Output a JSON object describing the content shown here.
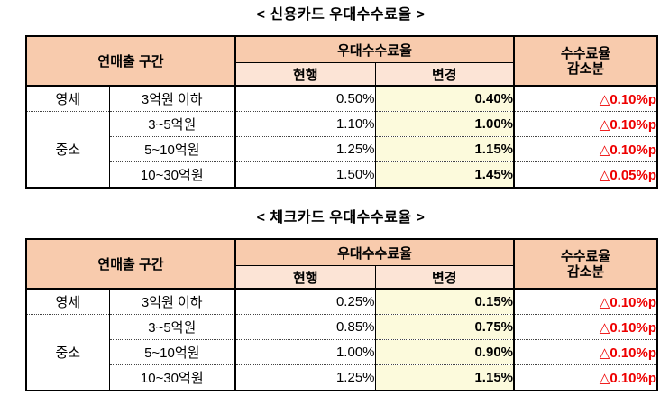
{
  "colors": {
    "header_bg": "#F8CBAD",
    "subheader_bg": "#FCE4D6",
    "changed_col_bg": "#FCFADC",
    "reduction_text": "#EE0000"
  },
  "tables": [
    {
      "title": "< 신용카드 우대수수료율 >",
      "headers": {
        "sales_range": "연매출 구간",
        "preferential_rate": "우대수수료율",
        "current": "현행",
        "changed": "변경",
        "reduction_line1": "수수료율",
        "reduction_line2": "감소분"
      },
      "rows": [
        {
          "group": "영세",
          "group_rowspan": 1,
          "range": "3억원 이하",
          "current": "0.50%",
          "changed": "0.40%",
          "reduction": "△0.10%p"
        },
        {
          "group": "중소",
          "group_rowspan": 3,
          "range": "3~5억원",
          "current": "1.10%",
          "changed": "1.00%",
          "reduction": "△0.10%p"
        },
        {
          "range": "5~10억원",
          "current": "1.25%",
          "changed": "1.15%",
          "reduction": "△0.10%p"
        },
        {
          "range": "10~30억원",
          "current": "1.50%",
          "changed": "1.45%",
          "reduction": "△0.05%p"
        }
      ]
    },
    {
      "title": "< 체크카드 우대수수료율 >",
      "headers": {
        "sales_range": "연매출 구간",
        "preferential_rate": "우대수수료율",
        "current": "현행",
        "changed": "변경",
        "reduction_line1": "수수료율",
        "reduction_line2": "감소분"
      },
      "rows": [
        {
          "group": "영세",
          "group_rowspan": 1,
          "range": "3억원 이하",
          "current": "0.25%",
          "changed": "0.15%",
          "reduction": "△0.10%p"
        },
        {
          "group": "중소",
          "group_rowspan": 3,
          "range": "3~5억원",
          "current": "0.85%",
          "changed": "0.75%",
          "reduction": "△0.10%p"
        },
        {
          "range": "5~10억원",
          "current": "1.00%",
          "changed": "0.90%",
          "reduction": "△0.10%p"
        },
        {
          "range": "10~30억원",
          "current": "1.25%",
          "changed": "1.15%",
          "reduction": "△0.10%p"
        }
      ]
    }
  ]
}
